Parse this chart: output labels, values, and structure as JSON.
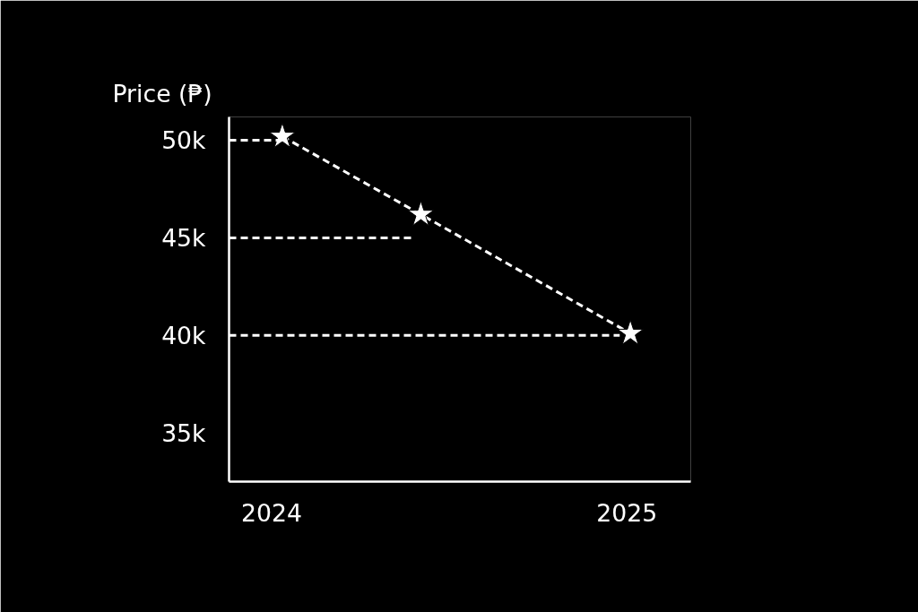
{
  "chart_data": {
    "type": "line",
    "ylabel": "Price (₱)",
    "x": [
      2024.03,
      2024.42,
      2025.01
    ],
    "series": [
      {
        "color": "#ffffff",
        "values": [
          50200,
          46200,
          40100
        ],
        "marker": "star",
        "line_style": "dashed"
      },
      {
        "color": "#ffffff",
        "x": [
          2023.88,
          2024.03
        ],
        "values": [
          50000,
          50000
        ],
        "marker": "none",
        "line_style": "dashed"
      },
      {
        "color": "#ffffff",
        "x": [
          2023.88,
          2024.4
        ],
        "values": [
          45000,
          45000
        ],
        "marker": "none",
        "line_style": "dashed"
      },
      {
        "color": "#ffffff",
        "x": [
          2023.88,
          2024.98
        ],
        "values": [
          40000,
          40000
        ],
        "marker": "none",
        "line_style": "dashed"
      }
    ],
    "xlim": [
      2023.88,
      2025.18
    ],
    "xticks": [
      2024,
      2025
    ],
    "ylim": [
      32500,
      51200
    ],
    "yticks": [
      {
        "value": 35000,
        "label": "35k"
      },
      {
        "value": 40000,
        "label": "40k"
      },
      {
        "value": 45000,
        "label": "45k"
      },
      {
        "value": 50000,
        "label": "50k"
      }
    ],
    "grid": false
  }
}
